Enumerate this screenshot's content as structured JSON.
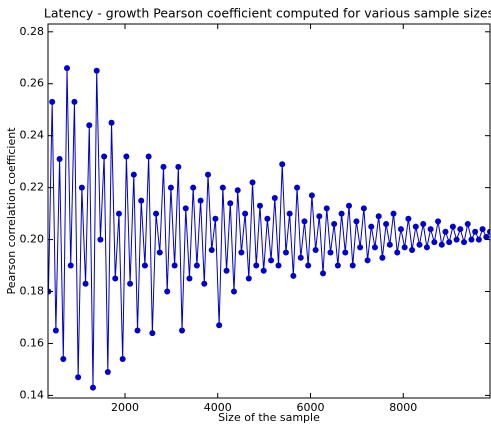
{
  "chart_data": {
    "type": "line",
    "title": "Latency - growth Pearson coefficient computed for various sample sizes",
    "x_label": "Size of the sample",
    "y_label": "Pearson correlation coefficient",
    "x": [
      350,
      430,
      510,
      590,
      670,
      750,
      830,
      910,
      990,
      1070,
      1150,
      1230,
      1310,
      1390,
      1470,
      1550,
      1630,
      1710,
      1790,
      1870,
      1950,
      2030,
      2110,
      2190,
      2270,
      2350,
      2430,
      2510,
      2590,
      2670,
      2750,
      2830,
      2910,
      2990,
      3070,
      3150,
      3230,
      3310,
      3390,
      3470,
      3550,
      3630,
      3710,
      3790,
      3870,
      3950,
      4030,
      4110,
      4190,
      4270,
      4350,
      4430,
      4510,
      4590,
      4670,
      4750,
      4830,
      4910,
      4990,
      5070,
      5150,
      5230,
      5310,
      5390,
      5470,
      5550,
      5630,
      5710,
      5790,
      5870,
      5950,
      6030,
      6110,
      6190,
      6270,
      6350,
      6430,
      6510,
      6590,
      6670,
      6750,
      6830,
      6910,
      6990,
      7070,
      7150,
      7230,
      7310,
      7390,
      7470,
      7550,
      7630,
      7710,
      7790,
      7870,
      7950,
      8030,
      8110,
      8190,
      8270,
      8350,
      8430,
      8510,
      8590,
      8670,
      8750,
      8830,
      8910,
      8990,
      9070,
      9150,
      9230,
      9310,
      9390,
      9470,
      9550,
      9630,
      9710,
      9790,
      9870
    ],
    "series": [
      {
        "name": "Pearson",
        "color": "#0000cc",
        "values": [
          0.18,
          0.253,
          0.165,
          0.231,
          0.154,
          0.266,
          0.19,
          0.253,
          0.147,
          0.22,
          0.183,
          0.244,
          0.143,
          0.265,
          0.2,
          0.232,
          0.149,
          0.245,
          0.185,
          0.21,
          0.154,
          0.232,
          0.183,
          0.225,
          0.165,
          0.215,
          0.19,
          0.232,
          0.164,
          0.21,
          0.195,
          0.228,
          0.18,
          0.22,
          0.19,
          0.228,
          0.165,
          0.212,
          0.185,
          0.22,
          0.19,
          0.215,
          0.183,
          0.225,
          0.196,
          0.208,
          0.167,
          0.22,
          0.188,
          0.214,
          0.18,
          0.219,
          0.195,
          0.21,
          0.185,
          0.222,
          0.19,
          0.213,
          0.188,
          0.208,
          0.192,
          0.216,
          0.19,
          0.229,
          0.195,
          0.21,
          0.186,
          0.22,
          0.193,
          0.207,
          0.19,
          0.217,
          0.196,
          0.209,
          0.187,
          0.212,
          0.195,
          0.206,
          0.19,
          0.21,
          0.195,
          0.213,
          0.19,
          0.207,
          0.197,
          0.212,
          0.192,
          0.205,
          0.197,
          0.209,
          0.193,
          0.206,
          0.198,
          0.21,
          0.195,
          0.204,
          0.197,
          0.208,
          0.196,
          0.205,
          0.198,
          0.206,
          0.197,
          0.204,
          0.199,
          0.207,
          0.198,
          0.203,
          0.199,
          0.205,
          0.2,
          0.204,
          0.199,
          0.206,
          0.2,
          0.203,
          0.2,
          0.204,
          0.201,
          0.203
        ]
      }
    ],
    "xlim": [
      340,
      9870
    ],
    "xticks": [
      2000,
      4000,
      6000,
      8000
    ],
    "ylim": [
      0.139,
      0.283
    ],
    "yticks": [
      0.14,
      0.16,
      0.18,
      {
        "value": 0.2,
        "label": "0.20"
      },
      0.22,
      0.24,
      0.26,
      0.28
    ],
    "grid": false
  }
}
